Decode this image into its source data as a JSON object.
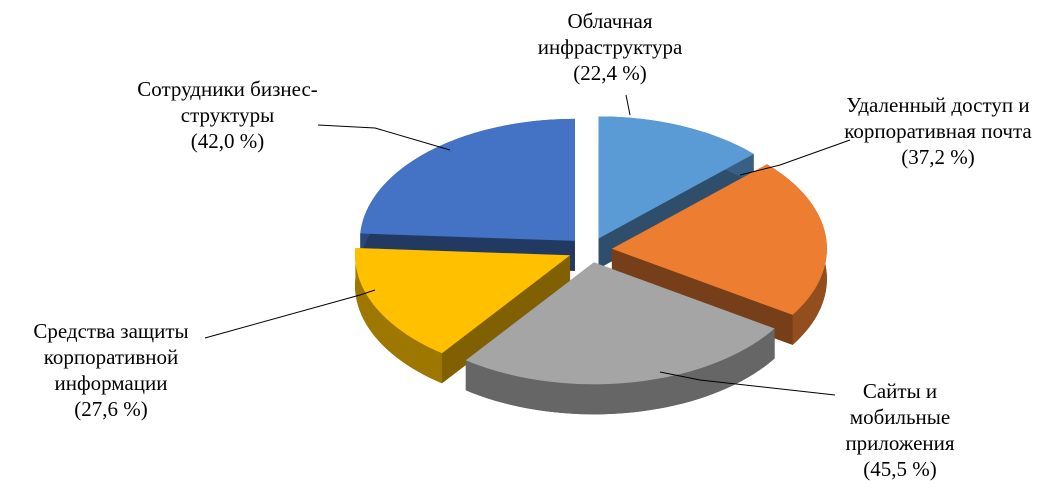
{
  "chart_data": {
    "type": "pie3d",
    "categories": [
      "Облачная инфраструктура",
      "Удаленный доступ и корпоративная почта",
      "Сайты и мобильные приложения",
      "Средства защиты корпоративной информации",
      "Сотрудники бизнес-структуры"
    ],
    "values": [
      22.4,
      37.2,
      45.5,
      27.6,
      42.0
    ],
    "value_labels": [
      "(22,4 %)",
      "(37,2 %)",
      "(45,5 %)",
      "(27,6 %)",
      "(42,0 %)"
    ],
    "colors": [
      "#5b9bd5",
      "#ed7d31",
      "#a5a5a5",
      "#ffc000",
      "#4472c4"
    ]
  }
}
